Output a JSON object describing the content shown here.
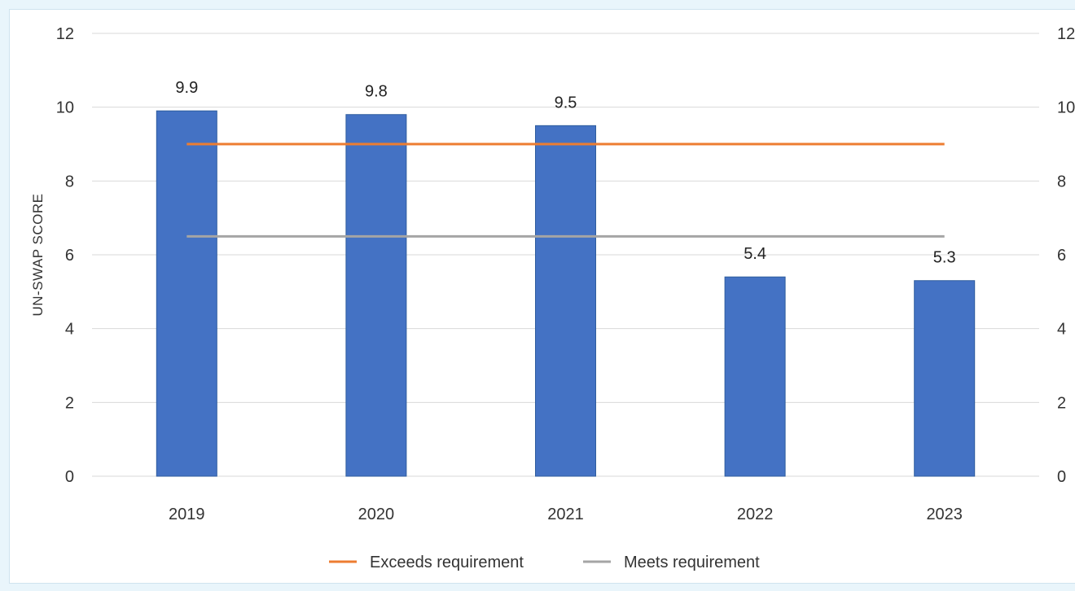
{
  "chart_data": {
    "type": "bar",
    "categories": [
      "2019",
      "2020",
      "2021",
      "2022",
      "2023"
    ],
    "series": [
      {
        "values": [
          9.9,
          9.8,
          9.5,
          5.4,
          5.3
        ],
        "color": "#4472c4",
        "data_labels": [
          "9.9",
          "9.8",
          "9.5",
          "5.4",
          "5.3"
        ]
      }
    ],
    "reference_lines": [
      {
        "name": "Exceeds requirement",
        "value": 9.0,
        "color": "#ed7d31"
      },
      {
        "name": "Meets requirement",
        "value": 6.5,
        "color": "#a5a5a5"
      }
    ],
    "ylabel": "UN-SWAP SCORE",
    "ylim": [
      0,
      12
    ],
    "yticks": [
      "0",
      "2",
      "4",
      "6",
      "8",
      "10",
      "12"
    ],
    "secondary_yticks": [
      "0",
      "2",
      "4",
      "6",
      "8",
      "10",
      "12"
    ],
    "grid": true,
    "legend_position": "bottom-center"
  }
}
